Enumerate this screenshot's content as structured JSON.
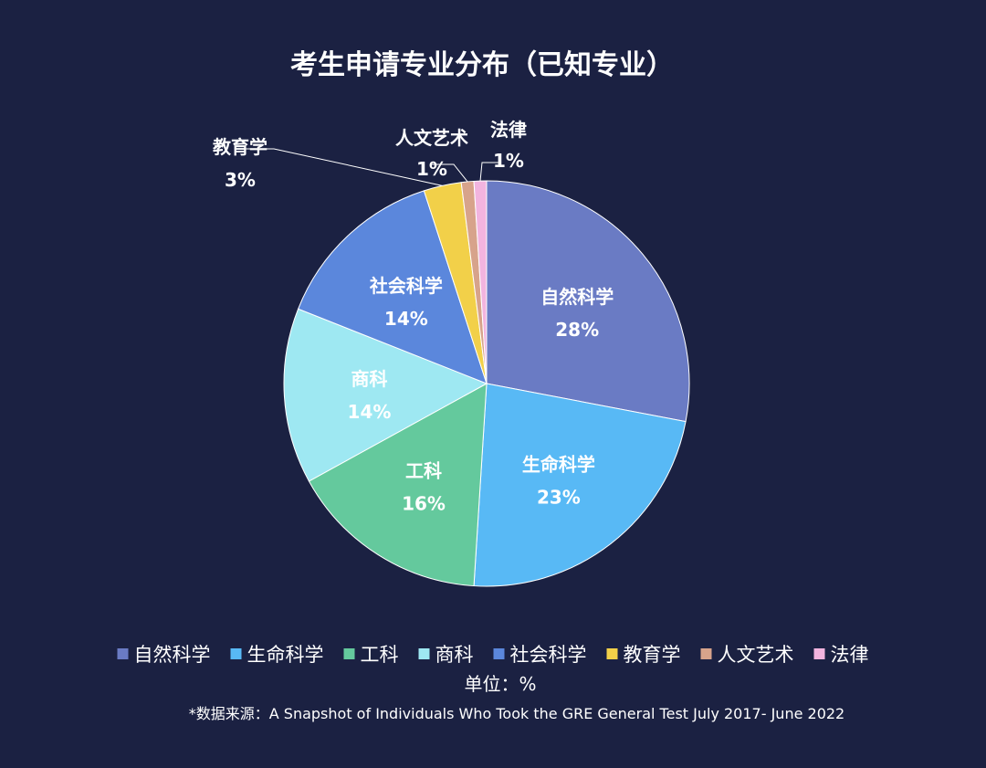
{
  "chart_data": {
    "type": "pie",
    "title": "考生申请专业分布（已知专业）",
    "slices": [
      {
        "label": "自然科学",
        "value": 28,
        "value_label": "28%",
        "color": "#6a7bc4"
      },
      {
        "label": "生命科学",
        "value": 23,
        "value_label": "23%",
        "color": "#58b9f5"
      },
      {
        "label": "工科",
        "value": 16,
        "value_label": "16%",
        "color": "#64c99d"
      },
      {
        "label": "商科",
        "value": 14,
        "value_label": "14%",
        "color": "#9ee8f2"
      },
      {
        "label": "社会科学",
        "value": 14,
        "value_label": "14%",
        "color": "#5b87dc"
      },
      {
        "label": "教育学",
        "value": 3,
        "value_label": "3%",
        "color": "#f2d049"
      },
      {
        "label": "人文艺术",
        "value": 1,
        "value_label": "1%",
        "color": "#d7a38b"
      },
      {
        "label": "法律",
        "value": 1,
        "value_label": "1%",
        "color": "#f2b4df"
      }
    ],
    "legend_position": "bottom",
    "unit": "单位：%",
    "source": "*数据来源：A Snapshot of Individuals Who Took the GRE General Test July 2017- June 2022"
  }
}
